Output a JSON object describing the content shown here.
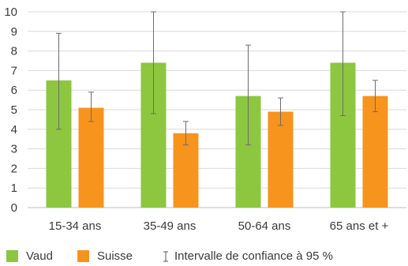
{
  "chart_data": {
    "type": "bar",
    "categories": [
      "15-34 ans",
      "35-49 ans",
      "50-64 ans",
      "65 ans et +"
    ],
    "series": [
      {
        "name": "Vaud",
        "color": "#8dc63f",
        "values": [
          6.5,
          7.4,
          5.7,
          7.4
        ],
        "ci_low": [
          4.0,
          4.8,
          3.2,
          4.7
        ],
        "ci_high": [
          8.9,
          10.0,
          8.3,
          10.0
        ]
      },
      {
        "name": "Suisse",
        "color": "#f7941d",
        "values": [
          5.1,
          3.8,
          4.9,
          5.7
        ],
        "ci_low": [
          4.4,
          3.2,
          4.2,
          4.9
        ],
        "ci_high": [
          5.9,
          4.4,
          5.6,
          6.5
        ]
      }
    ],
    "yticks": [
      "0",
      "1",
      "2",
      "3",
      "4",
      "5",
      "6",
      "7",
      "8",
      "9",
      "10"
    ],
    "ylim": [
      0,
      10
    ],
    "grid": true,
    "legend_position": "bottom",
    "ci_legend_label": "Intervalle de confiance à 95 %"
  }
}
